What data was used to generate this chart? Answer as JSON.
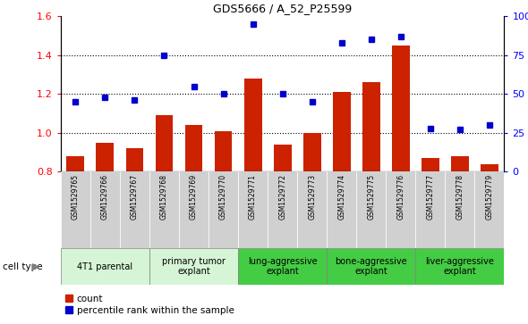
{
  "title": "GDS5666 / A_52_P25599",
  "samples": [
    "GSM1529765",
    "GSM1529766",
    "GSM1529767",
    "GSM1529768",
    "GSM1529769",
    "GSM1529770",
    "GSM1529771",
    "GSM1529772",
    "GSM1529773",
    "GSM1529774",
    "GSM1529775",
    "GSM1529776",
    "GSM1529777",
    "GSM1529778",
    "GSM1529779"
  ],
  "bar_values": [
    0.88,
    0.95,
    0.92,
    1.09,
    1.04,
    1.01,
    1.28,
    0.94,
    1.0,
    1.21,
    1.26,
    1.45,
    0.87,
    0.88,
    0.84
  ],
  "dot_values": [
    45,
    48,
    46,
    75,
    55,
    50,
    95,
    50,
    45,
    83,
    85,
    87,
    28,
    27,
    30
  ],
  "ylim_left": [
    0.8,
    1.6
  ],
  "ylim_right": [
    0.0,
    100.0
  ],
  "yticks_left": [
    0.8,
    1.0,
    1.2,
    1.4,
    1.6
  ],
  "yticks_right": [
    0,
    25,
    50,
    75,
    100
  ],
  "ytick_labels_right": [
    "0",
    "25",
    "50",
    "75",
    "100%"
  ],
  "bar_color": "#cc2200",
  "dot_color": "#0000cc",
  "cell_types": [
    {
      "label": "4T1 parental",
      "indices": [
        0,
        1,
        2
      ],
      "color": "#d6f5d6"
    },
    {
      "label": "primary tumor\nexplant",
      "indices": [
        3,
        4,
        5
      ],
      "color": "#d6f5d6"
    },
    {
      "label": "lung-aggressive\nexplant",
      "indices": [
        6,
        7,
        8
      ],
      "color": "#44cc44"
    },
    {
      "label": "bone-aggressive\nexplant",
      "indices": [
        9,
        10,
        11
      ],
      "color": "#44cc44"
    },
    {
      "label": "liver-aggressive\nexplant",
      "indices": [
        12,
        13,
        14
      ],
      "color": "#44cc44"
    }
  ],
  "legend_bar_label": "count",
  "legend_dot_label": "percentile rank within the sample",
  "cell_type_label": "cell type"
}
